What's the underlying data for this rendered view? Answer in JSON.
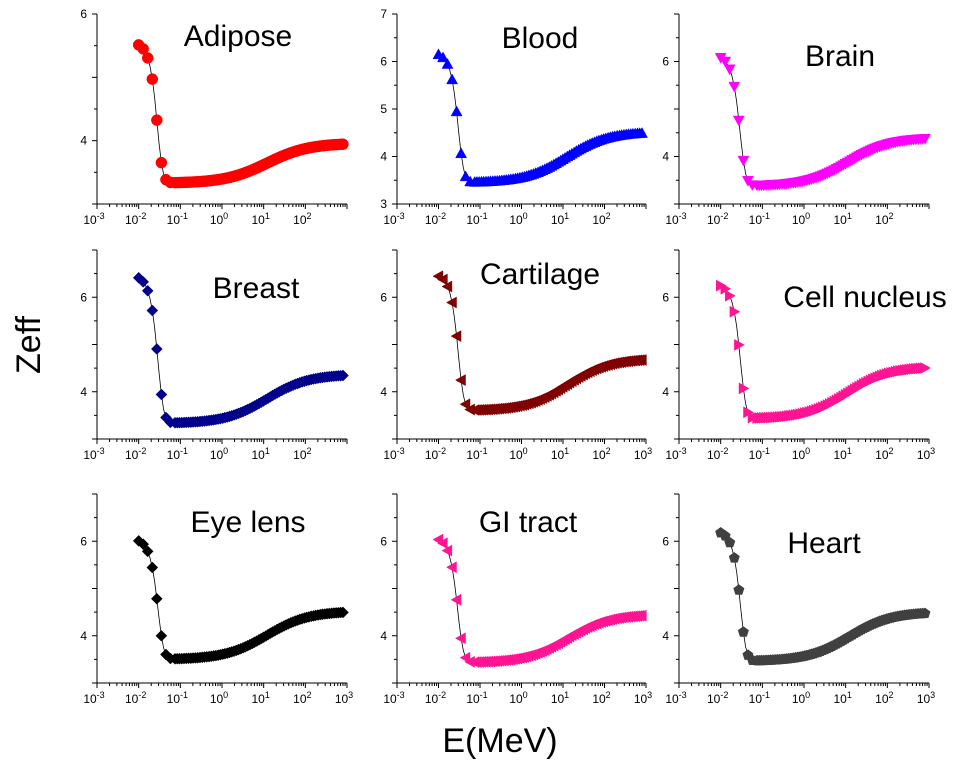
{
  "figure": {
    "ylabel": "Zeff",
    "xlabel": "E(MeV)"
  },
  "chart_data": [
    {
      "type": "scatter",
      "title": "Adipose",
      "marker": "circle",
      "color": "#ff0000",
      "xscale": "log",
      "xlim": [
        0.001,
        1000
      ],
      "ylim": [
        3,
        6
      ],
      "yticks": [
        4,
        6
      ],
      "xticks": [
        0.001,
        0.01,
        0.1,
        1,
        10,
        100
      ],
      "xticklabels": [
        "-3",
        "-2",
        "-1",
        "0",
        "1",
        "2"
      ],
      "params": {
        "lowA": 5.6,
        "min": 3.33,
        "high": 3.96,
        "c": 0.026,
        "s": 0.005,
        "m": 12,
        "w": 1.1
      }
    },
    {
      "type": "scatter",
      "title": "Blood",
      "marker": "triangle-up",
      "color": "#0000ff",
      "xscale": "log",
      "xlim": [
        0.001,
        1000
      ],
      "ylim": [
        3,
        7
      ],
      "yticks": [
        3,
        4,
        5,
        6,
        7
      ],
      "xticks": [
        0.001,
        0.01,
        0.1,
        1,
        10,
        100
      ],
      "xticklabels": [
        "-3",
        "-2",
        "-1",
        "0",
        "1",
        "2"
      ],
      "params": {
        "lowA": 6.25,
        "min": 3.45,
        "high": 4.52,
        "c": 0.028,
        "s": 0.0055,
        "m": 12,
        "w": 1.1
      }
    },
    {
      "type": "scatter",
      "title": "Brain",
      "marker": "triangle-down",
      "color": "#ff00ff",
      "xscale": "log",
      "xlim": [
        0.001,
        1000
      ],
      "ylim": [
        3,
        7
      ],
      "yticks": [
        4,
        6
      ],
      "xticks": [
        0.001,
        0.01,
        0.1,
        1,
        10,
        100
      ],
      "xticklabels": [
        "-3",
        "-2",
        "-1",
        "0",
        "1",
        "2"
      ],
      "params": {
        "lowA": 6.2,
        "min": 3.38,
        "high": 4.4,
        "c": 0.027,
        "s": 0.0055,
        "m": 12,
        "w": 1.1
      }
    },
    {
      "type": "scatter",
      "title": "Breast",
      "marker": "diamond",
      "color": "#00008b",
      "xscale": "log",
      "xlim": [
        0.001,
        1000
      ],
      "ylim": [
        3,
        7
      ],
      "yticks": [
        4,
        6
      ],
      "xticks": [
        0.001,
        0.01,
        0.1,
        1,
        10,
        100
      ],
      "xticklabels": [
        "-3",
        "-2",
        "-1",
        "0",
        "1",
        "2"
      ],
      "params": {
        "lowA": 6.55,
        "min": 3.33,
        "high": 4.37,
        "c": 0.027,
        "s": 0.0055,
        "m": 12,
        "w": 1.1
      }
    },
    {
      "type": "scatter",
      "title": "Cartilage",
      "marker": "triangle-left",
      "color": "#800000",
      "xscale": "log",
      "xlim": [
        0.001,
        1000
      ],
      "ylim": [
        3,
        7
      ],
      "yticks": [
        4,
        6
      ],
      "xticks": [
        0.001,
        0.01,
        0.1,
        1,
        10,
        100,
        1000
      ],
      "xticklabels": [
        "-3",
        "-2",
        "-1",
        "0",
        "1",
        "2",
        "3"
      ],
      "params": {
        "lowA": 6.55,
        "min": 3.6,
        "high": 4.7,
        "c": 0.028,
        "s": 0.0055,
        "m": 12,
        "w": 1.1
      }
    },
    {
      "type": "scatter",
      "title": "Cell nucleus",
      "marker": "triangle-right",
      "color": "#ff1493",
      "xscale": "log",
      "xlim": [
        0.001,
        1000
      ],
      "ylim": [
        3,
        7
      ],
      "yticks": [
        4,
        6
      ],
      "xticks": [
        0.001,
        0.01,
        0.1,
        1,
        10,
        100,
        1000
      ],
      "xticklabels": [
        "-3",
        "-2",
        "-1",
        "0",
        "1",
        "2",
        "3"
      ],
      "params": {
        "lowA": 6.35,
        "min": 3.43,
        "high": 4.53,
        "c": 0.028,
        "s": 0.0055,
        "m": 12,
        "w": 1.1
      }
    },
    {
      "type": "scatter",
      "title": "Eye lens",
      "marker": "diamond",
      "color": "#000000",
      "xscale": "log",
      "xlim": [
        0.001,
        1000
      ],
      "ylim": [
        3,
        7
      ],
      "yticks": [
        4,
        6
      ],
      "xticks": [
        0.001,
        0.01,
        0.1,
        1,
        10,
        100,
        1000
      ],
      "xticklabels": [
        "-3",
        "-2",
        "-1",
        "0",
        "1",
        "2",
        "3"
      ],
      "params": {
        "lowA": 6.12,
        "min": 3.5,
        "high": 4.52,
        "c": 0.027,
        "s": 0.0055,
        "m": 12,
        "w": 1.1
      }
    },
    {
      "type": "scatter",
      "title": "GI tract",
      "marker": "triangle-left",
      "color": "#ff1493",
      "xscale": "log",
      "xlim": [
        0.001,
        1000
      ],
      "ylim": [
        3,
        7
      ],
      "yticks": [
        4,
        6
      ],
      "xticks": [
        0.001,
        0.01,
        0.1,
        1,
        10,
        100,
        1000
      ],
      "xticklabels": [
        "-3",
        "-2",
        "-1",
        "0",
        "1",
        "2",
        "3"
      ],
      "params": {
        "lowA": 6.15,
        "min": 3.43,
        "high": 4.45,
        "c": 0.027,
        "s": 0.0055,
        "m": 12,
        "w": 1.1
      }
    },
    {
      "type": "scatter",
      "title": "Heart",
      "marker": "pentagon",
      "color": "#404040",
      "xscale": "log",
      "xlim": [
        0.001,
        1000
      ],
      "ylim": [
        3,
        7
      ],
      "yticks": [
        4,
        6
      ],
      "xticks": [
        0.001,
        0.01,
        0.1,
        1,
        10,
        100,
        1000
      ],
      "xticklabels": [
        "-3",
        "-2",
        "-1",
        "0",
        "1",
        "2",
        "3"
      ],
      "params": {
        "lowA": 6.28,
        "min": 3.46,
        "high": 4.5,
        "c": 0.028,
        "s": 0.0055,
        "m": 12,
        "w": 1.1
      }
    }
  ]
}
